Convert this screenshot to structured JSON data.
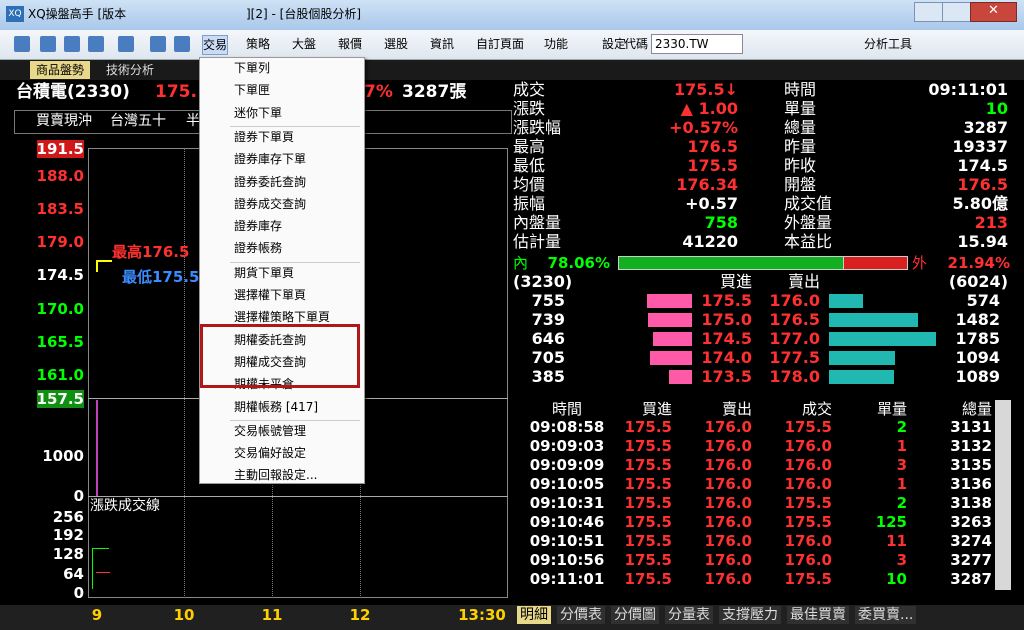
{
  "window": {
    "title": "XQ操盤高手 [版本",
    "title_suffix": "][2] - [台股個股分析]"
  },
  "toolbar": {
    "menus": [
      "交易",
      "策略",
      "大盤",
      "報價",
      "選股",
      "資訊",
      "自訂頁面",
      "功能",
      "設定"
    ],
    "code_label": "代碼",
    "code_value": "2330.TW",
    "tools": "分析工具"
  },
  "tabs": [
    "商品盤勢",
    "技術分析"
  ],
  "header": {
    "name": "台積電(2330)",
    "price": "175.",
    "change_pct": "7%",
    "volume": "3287張"
  },
  "subbar": [
    "買賣現沖",
    "台灣五十",
    "半"
  ],
  "menu": {
    "groups": [
      [
        "下單列",
        "下單匣",
        "迷你下單"
      ],
      [
        "證券下單頁",
        "證券庫存下單",
        "證券委託查詢",
        "證券成交查詢",
        "證券庫存",
        "證券帳務"
      ],
      [
        "期貨下單頁",
        "選擇權下單頁",
        "選擇權策略下單頁",
        "期權委託查詢",
        "期權成交查詢",
        "期權未平倉",
        "期權帳務 [417]"
      ],
      [
        "交易帳號管理",
        "交易偏好設定",
        "主動回報設定..."
      ]
    ]
  },
  "chart": {
    "price_ticks": [
      "191.5",
      "188.0",
      "183.5",
      "179.0",
      "174.5",
      "170.0",
      "165.5",
      "161.0",
      "157.5"
    ],
    "high_label": "最高176.5",
    "low_label": "最低175.5",
    "volume_ticks": [
      "1000",
      "0"
    ],
    "line_title": "漲跌成交線",
    "line_ticks": [
      "256",
      "192",
      "128",
      "64",
      "0"
    ],
    "time_ticks": [
      "9",
      "10",
      "11",
      "12",
      "13:30"
    ]
  },
  "quote": {
    "left": [
      {
        "label": "成交",
        "value": "175.5↓",
        "color": "#ff3030"
      },
      {
        "label": "漲跌",
        "value": "▲ 1.00",
        "color": "#ff3030"
      },
      {
        "label": "漲跌幅",
        "value": "+0.57%",
        "color": "#ff3030"
      },
      {
        "label": "最高",
        "value": "176.5",
        "color": "#ff3030"
      },
      {
        "label": "最低",
        "value": "175.5",
        "color": "#ff3030"
      },
      {
        "label": "均價",
        "value": "176.34",
        "color": "#ff3030"
      },
      {
        "label": "振幅",
        "value": "+0.57",
        "color": "#ffffff"
      },
      {
        "label": "內盤量",
        "value": "758",
        "color": "#00ff00"
      },
      {
        "label": "估計量",
        "value": "41220",
        "color": "#ffffff"
      }
    ],
    "right": [
      {
        "label": "時間",
        "value": "09:11:01",
        "color": "#ffffff"
      },
      {
        "label": "單量",
        "value": "10",
        "color": "#00ff00"
      },
      {
        "label": "總量",
        "value": "3287",
        "color": "#ffffff"
      },
      {
        "label": "昨量",
        "value": "19337",
        "color": "#ffffff"
      },
      {
        "label": "昨收",
        "value": "174.5",
        "color": "#ffffff"
      },
      {
        "label": "開盤",
        "value": "176.5",
        "color": "#ff3030"
      },
      {
        "label": "成交值",
        "value": "5.80億",
        "color": "#ffffff"
      },
      {
        "label": "外盤量",
        "value": "213",
        "color": "#ff3030"
      },
      {
        "label": "本益比",
        "value": "15.94",
        "color": "#ffffff"
      }
    ]
  },
  "ratio": {
    "in_label": "內",
    "in": {
      "value": 78.06,
      "label": "78.06%"
    },
    "out_label": "外",
    "out": {
      "value": 21.94,
      "label": "21.94%"
    }
  },
  "book": {
    "buy_total": "(3230)",
    "buy_header": "買進",
    "sell_header": "賣出",
    "sell_total": "(6024)",
    "rows": [
      {
        "buy_vol": 755,
        "buy": "175.5",
        "sell": "176.0",
        "sell_vol": 574
      },
      {
        "buy_vol": 739,
        "buy": "175.0",
        "sell": "176.5",
        "sell_vol": 1482
      },
      {
        "buy_vol": 646,
        "buy": "174.5",
        "sell": "177.0",
        "sell_vol": 1785
      },
      {
        "buy_vol": 705,
        "buy": "174.0",
        "sell": "177.5",
        "sell_vol": 1094
      },
      {
        "buy_vol": 385,
        "buy": "173.5",
        "sell": "178.0",
        "sell_vol": 1089
      }
    ]
  },
  "trades": {
    "headers": [
      "時間",
      "買進",
      "賣出",
      "成交",
      "單量",
      "總量"
    ],
    "rows": [
      [
        "09:08:58",
        "175.5",
        "176.0",
        "175.5",
        "2",
        "3131"
      ],
      [
        "09:09:03",
        "175.5",
        "176.0",
        "176.0",
        "1",
        "3132"
      ],
      [
        "09:09:09",
        "175.5",
        "176.0",
        "176.0",
        "3",
        "3135"
      ],
      [
        "09:10:05",
        "175.5",
        "176.0",
        "176.0",
        "1",
        "3136"
      ],
      [
        "09:10:31",
        "175.5",
        "176.0",
        "175.5",
        "2",
        "3138"
      ],
      [
        "09:10:46",
        "175.5",
        "176.0",
        "175.5",
        "125",
        "3263"
      ],
      [
        "09:10:51",
        "175.5",
        "176.0",
        "176.0",
        "11",
        "3274"
      ],
      [
        "09:10:56",
        "175.5",
        "176.0",
        "176.0",
        "3",
        "3277"
      ],
      [
        "09:11:01",
        "175.5",
        "176.0",
        "175.5",
        "10",
        "3287"
      ]
    ],
    "qty_colors": [
      "#00ff00",
      "#ff3030",
      "#ff3030",
      "#ff3030",
      "#00ff00",
      "#00ff00",
      "#ff3030",
      "#ff3030",
      "#00ff00"
    ]
  },
  "bottom_tabs": [
    "明細",
    "分價表",
    "分價圖",
    "分量表",
    "支撐壓力",
    "最佳買賣",
    "委買賣..."
  ]
}
